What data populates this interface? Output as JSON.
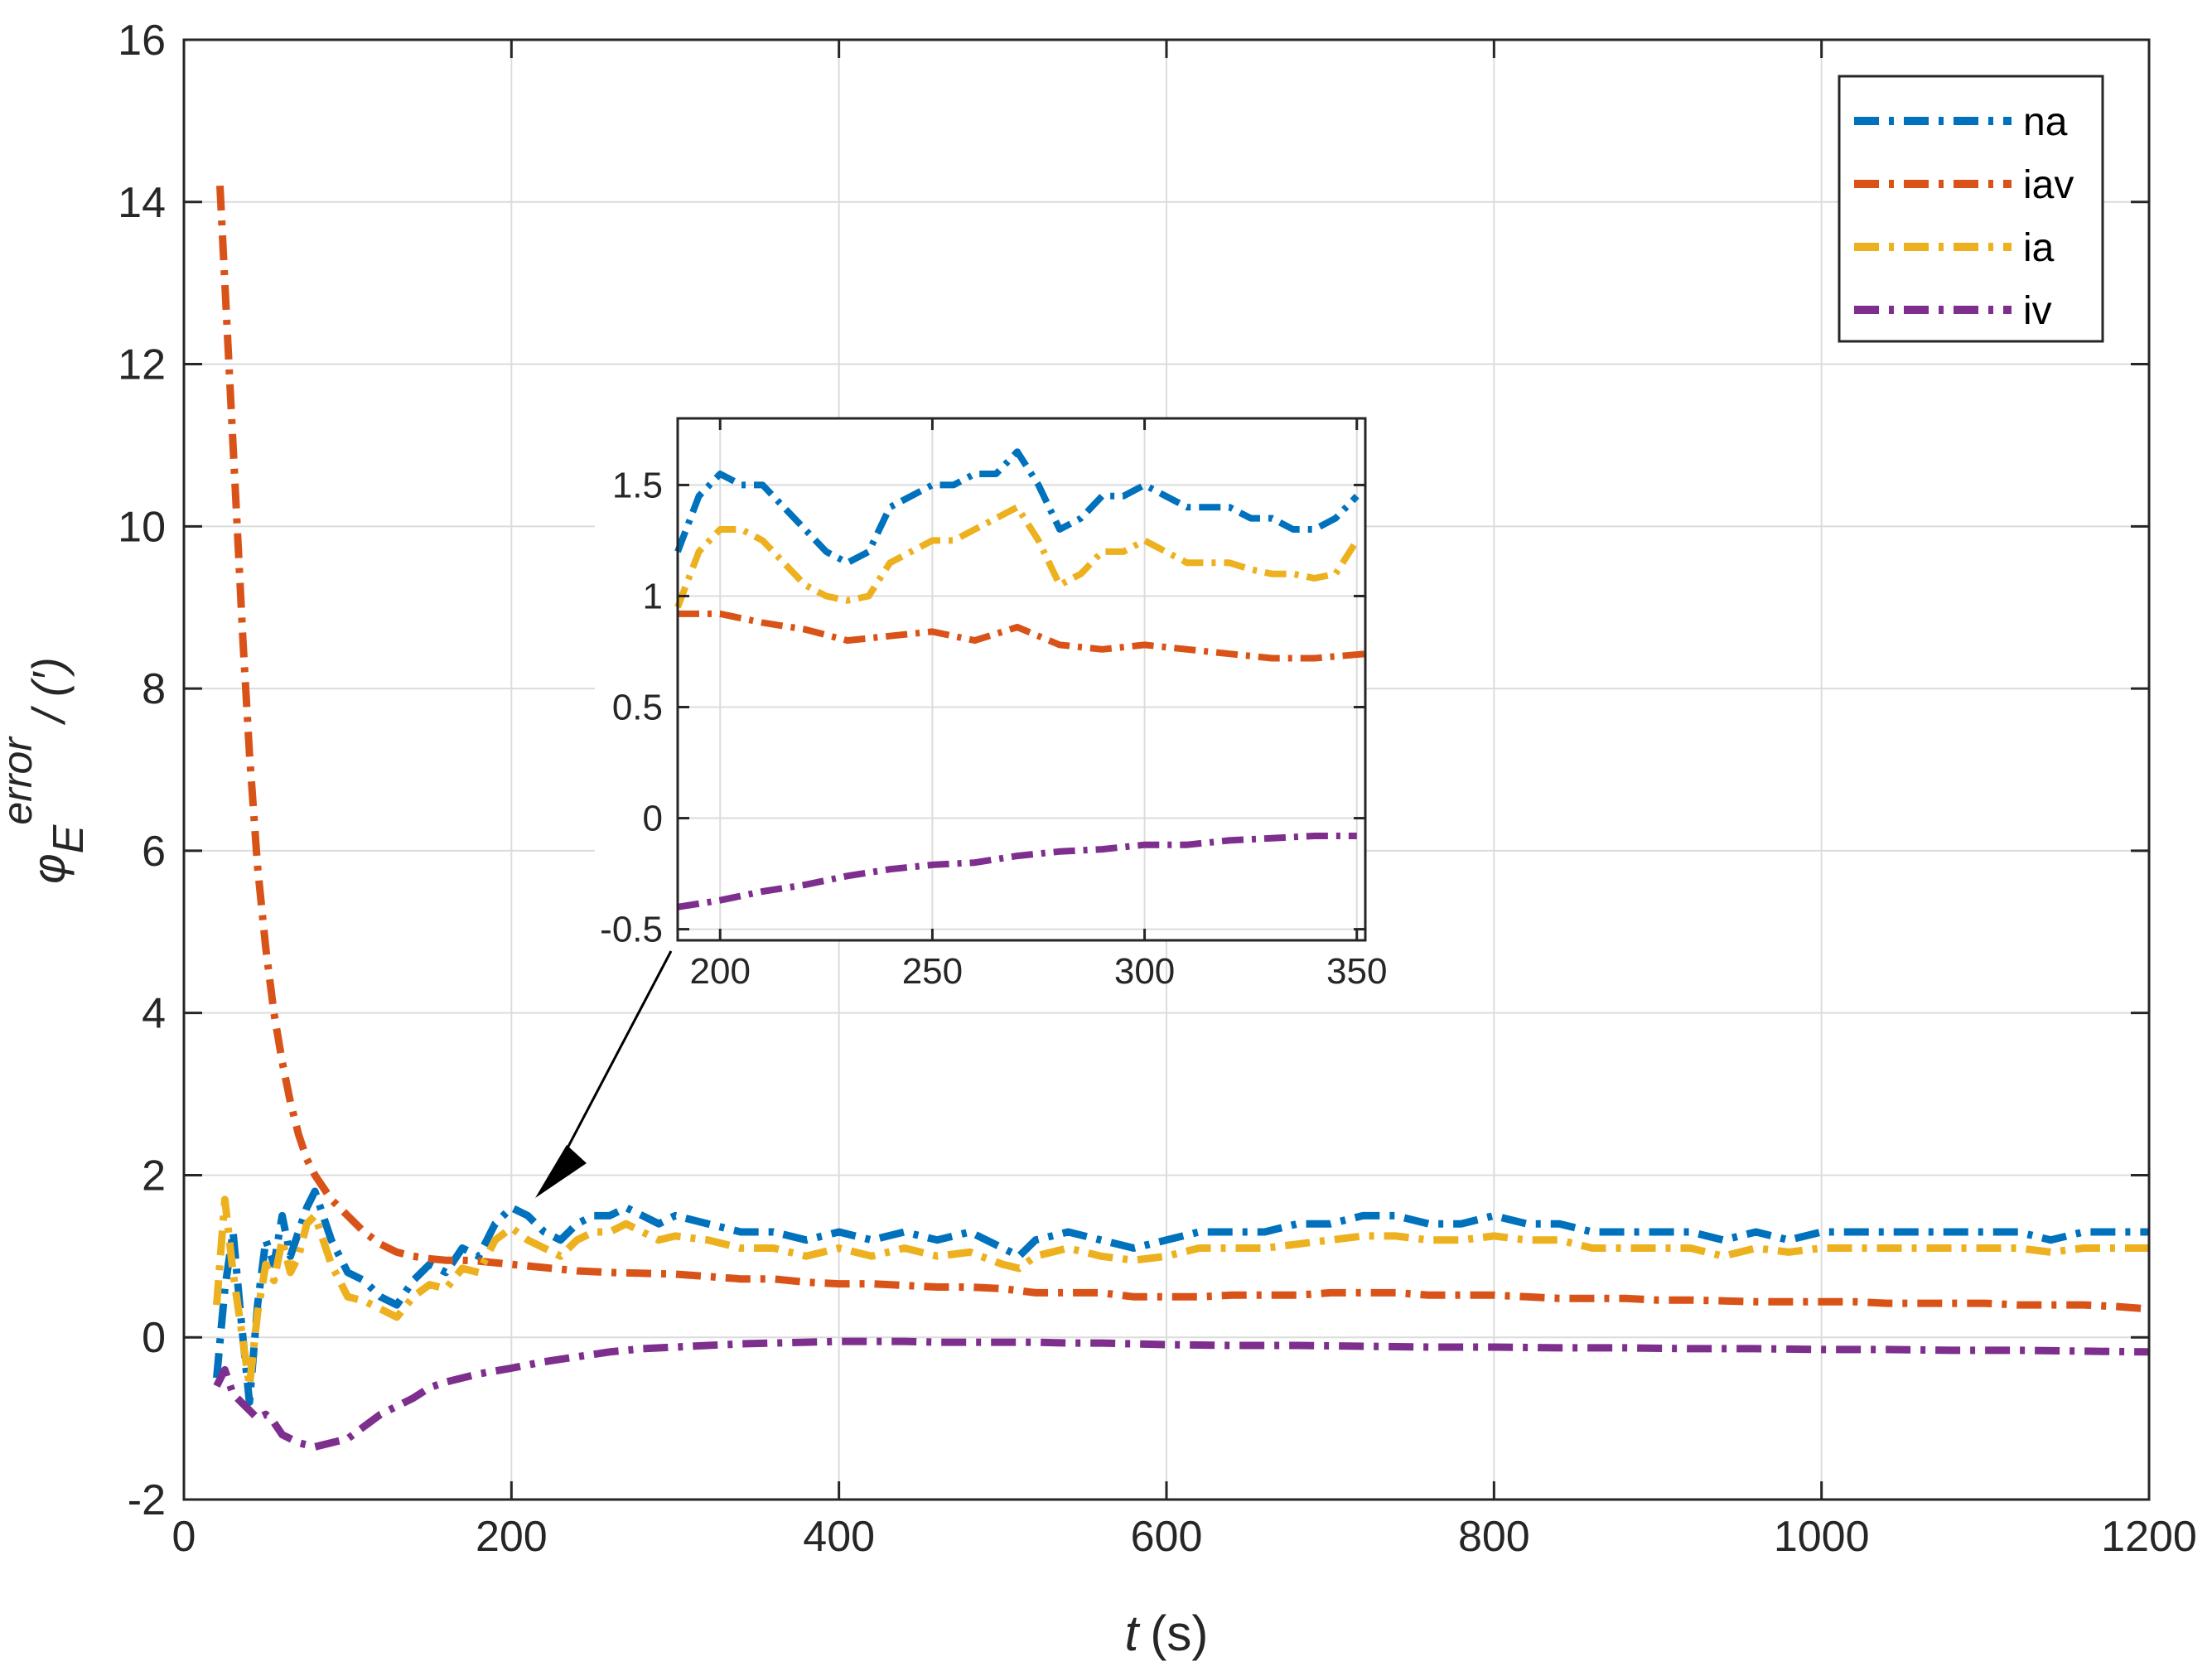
{
  "chart_data": [
    {
      "type": "line",
      "name": "main",
      "xlim": [
        0,
        1200
      ],
      "ylim": [
        -2,
        16
      ],
      "xticks": [
        "0",
        "200",
        "400",
        "600",
        "800",
        "1000",
        "1200"
      ],
      "yticks": [
        "-2",
        "0",
        "2",
        "4",
        "6",
        "8",
        "10",
        "12",
        "14",
        "16"
      ],
      "xlabel_var": "t",
      "xlabel_unit": "(s)",
      "ylabel_sym": "φ",
      "ylabel_sub": "E",
      "ylabel_sup": "error",
      "ylabel_unit": "/ (′)",
      "grid": true,
      "legend": {
        "position": "top-right",
        "entries": [
          "na",
          "iav",
          "ia",
          "iv"
        ]
      },
      "series": [
        {
          "name": "na",
          "color": "#0072BD",
          "x": [
            20,
            25,
            30,
            35,
            40,
            45,
            50,
            55,
            60,
            65,
            70,
            75,
            80,
            85,
            90,
            95,
            100,
            110,
            120,
            130,
            140,
            150,
            160,
            170,
            180,
            190,
            200,
            210,
            220,
            230,
            240,
            250,
            260,
            270,
            280,
            290,
            300,
            320,
            340,
            360,
            380,
            400,
            420,
            440,
            460,
            480,
            500,
            510,
            520,
            540,
            560,
            580,
            600,
            620,
            640,
            660,
            680,
            700,
            720,
            740,
            760,
            780,
            800,
            820,
            840,
            860,
            880,
            900,
            920,
            940,
            960,
            980,
            1000,
            1020,
            1040,
            1060,
            1080,
            1100,
            1120,
            1140,
            1160,
            1180,
            1200
          ],
          "y": [
            -0.5,
            0.6,
            1.3,
            0.2,
            -0.8,
            0.4,
            1.2,
            0.9,
            1.5,
            1.0,
            1.3,
            1.6,
            1.8,
            1.5,
            1.2,
            1.0,
            0.8,
            0.7,
            0.5,
            0.4,
            0.7,
            0.9,
            0.8,
            1.1,
            1.0,
            1.4,
            1.6,
            1.5,
            1.3,
            1.2,
            1.4,
            1.5,
            1.5,
            1.6,
            1.5,
            1.4,
            1.5,
            1.4,
            1.3,
            1.3,
            1.2,
            1.3,
            1.2,
            1.3,
            1.2,
            1.3,
            1.1,
            1.0,
            1.2,
            1.3,
            1.2,
            1.1,
            1.2,
            1.3,
            1.3,
            1.3,
            1.4,
            1.4,
            1.5,
            1.5,
            1.4,
            1.4,
            1.5,
            1.4,
            1.4,
            1.3,
            1.3,
            1.3,
            1.3,
            1.2,
            1.3,
            1.2,
            1.3,
            1.3,
            1.3,
            1.3,
            1.3,
            1.3,
            1.3,
            1.2,
            1.3,
            1.3,
            1.3
          ]
        },
        {
          "name": "iav",
          "color": "#D95319",
          "x": [
            22,
            25,
            28,
            32,
            36,
            40,
            45,
            50,
            55,
            60,
            65,
            70,
            75,
            80,
            90,
            100,
            110,
            120,
            130,
            140,
            150,
            160,
            170,
            180,
            190,
            200,
            220,
            240,
            260,
            280,
            300,
            320,
            340,
            360,
            380,
            400,
            420,
            440,
            460,
            480,
            500,
            520,
            540,
            560,
            580,
            600,
            620,
            640,
            660,
            680,
            700,
            720,
            740,
            760,
            780,
            800,
            820,
            840,
            860,
            880,
            900,
            920,
            940,
            960,
            980,
            1000,
            1020,
            1040,
            1060,
            1080,
            1100,
            1120,
            1140,
            1160,
            1180,
            1200
          ],
          "y": [
            14.2,
            13.0,
            11.8,
            10.2,
            8.6,
            7.2,
            5.8,
            4.8,
            4.0,
            3.4,
            2.9,
            2.5,
            2.2,
            2.0,
            1.7,
            1.5,
            1.3,
            1.15,
            1.05,
            1.0,
            0.97,
            0.95,
            0.95,
            0.94,
            0.92,
            0.9,
            0.86,
            0.82,
            0.8,
            0.79,
            0.78,
            0.75,
            0.72,
            0.72,
            0.68,
            0.66,
            0.66,
            0.64,
            0.62,
            0.62,
            0.6,
            0.55,
            0.55,
            0.55,
            0.5,
            0.5,
            0.5,
            0.52,
            0.52,
            0.52,
            0.55,
            0.55,
            0.55,
            0.52,
            0.52,
            0.52,
            0.5,
            0.48,
            0.48,
            0.48,
            0.46,
            0.46,
            0.45,
            0.44,
            0.44,
            0.44,
            0.44,
            0.42,
            0.42,
            0.42,
            0.42,
            0.4,
            0.4,
            0.4,
            0.38,
            0.35
          ]
        },
        {
          "name": "ia",
          "color": "#EDB120",
          "x": [
            20,
            25,
            30,
            35,
            40,
            45,
            50,
            55,
            60,
            65,
            70,
            75,
            80,
            85,
            90,
            95,
            100,
            110,
            120,
            130,
            140,
            150,
            160,
            170,
            180,
            190,
            200,
            210,
            220,
            230,
            240,
            250,
            260,
            270,
            280,
            290,
            300,
            320,
            340,
            360,
            380,
            400,
            420,
            440,
            460,
            480,
            500,
            510,
            520,
            540,
            560,
            580,
            600,
            620,
            640,
            660,
            680,
            700,
            720,
            740,
            760,
            780,
            800,
            820,
            840,
            860,
            880,
            900,
            920,
            940,
            960,
            980,
            1000,
            1020,
            1040,
            1060,
            1080,
            1100,
            1120,
            1140,
            1160,
            1180,
            1200
          ],
          "y": [
            0.4,
            1.7,
            0.8,
            0.1,
            -0.6,
            0.3,
            0.9,
            0.7,
            1.2,
            0.8,
            1.0,
            1.4,
            1.5,
            1.2,
            0.9,
            0.7,
            0.5,
            0.45,
            0.35,
            0.25,
            0.5,
            0.65,
            0.6,
            0.85,
            0.8,
            1.2,
            1.35,
            1.2,
            1.1,
            1.0,
            1.2,
            1.3,
            1.3,
            1.4,
            1.3,
            1.2,
            1.25,
            1.2,
            1.1,
            1.1,
            1.0,
            1.1,
            1.0,
            1.1,
            1.0,
            1.05,
            0.9,
            0.85,
            1.0,
            1.1,
            1.0,
            0.95,
            1.0,
            1.1,
            1.1,
            1.1,
            1.15,
            1.2,
            1.25,
            1.25,
            1.2,
            1.2,
            1.25,
            1.2,
            1.2,
            1.1,
            1.1,
            1.1,
            1.1,
            1.0,
            1.1,
            1.05,
            1.1,
            1.1,
            1.1,
            1.1,
            1.1,
            1.1,
            1.1,
            1.05,
            1.1,
            1.1,
            1.1
          ]
        },
        {
          "name": "iv",
          "color": "#7E2F8E",
          "x": [
            20,
            25,
            30,
            35,
            40,
            45,
            50,
            55,
            60,
            70,
            80,
            90,
            100,
            110,
            120,
            130,
            140,
            150,
            160,
            180,
            200,
            220,
            240,
            260,
            280,
            300,
            320,
            340,
            360,
            380,
            400,
            420,
            440,
            460,
            480,
            500,
            520,
            540,
            560,
            580,
            600,
            640,
            680,
            720,
            760,
            800,
            840,
            880,
            920,
            960,
            1000,
            1040,
            1080,
            1120,
            1160,
            1200
          ],
          "y": [
            -0.6,
            -0.4,
            -0.7,
            -0.8,
            -0.9,
            -1.0,
            -0.95,
            -1.05,
            -1.2,
            -1.3,
            -1.35,
            -1.3,
            -1.25,
            -1.1,
            -0.95,
            -0.85,
            -0.75,
            -0.62,
            -0.55,
            -0.45,
            -0.38,
            -0.3,
            -0.24,
            -0.18,
            -0.14,
            -0.12,
            -0.1,
            -0.08,
            -0.07,
            -0.06,
            -0.05,
            -0.05,
            -0.05,
            -0.06,
            -0.06,
            -0.06,
            -0.06,
            -0.07,
            -0.07,
            -0.08,
            -0.09,
            -0.1,
            -0.1,
            -0.11,
            -0.12,
            -0.12,
            -0.13,
            -0.13,
            -0.14,
            -0.14,
            -0.15,
            -0.15,
            -0.16,
            -0.16,
            -0.17,
            -0.18
          ]
        }
      ]
    },
    {
      "type": "line",
      "name": "inset",
      "xlim": [
        190,
        352
      ],
      "ylim": [
        -0.55,
        1.8
      ],
      "xticks": [
        "200",
        "250",
        "300",
        "350"
      ],
      "yticks": [
        "-0.5",
        "0",
        "0.5",
        "1",
        "1.5"
      ],
      "grid": true,
      "annotation": "arrow pointing from inset to t ≈ 200 s on main plot",
      "series": [
        {
          "name": "na",
          "color": "#0072BD",
          "x": [
            190,
            195,
            200,
            205,
            210,
            215,
            220,
            225,
            230,
            235,
            240,
            245,
            250,
            255,
            260,
            265,
            270,
            275,
            280,
            285,
            290,
            295,
            300,
            305,
            310,
            315,
            320,
            325,
            330,
            335,
            340,
            345,
            350
          ],
          "y": [
            1.2,
            1.45,
            1.55,
            1.5,
            1.5,
            1.4,
            1.3,
            1.2,
            1.15,
            1.2,
            1.4,
            1.45,
            1.5,
            1.5,
            1.55,
            1.55,
            1.65,
            1.5,
            1.3,
            1.35,
            1.45,
            1.45,
            1.5,
            1.45,
            1.4,
            1.4,
            1.4,
            1.35,
            1.35,
            1.3,
            1.3,
            1.35,
            1.45
          ]
        },
        {
          "name": "iav",
          "color": "#D95319",
          "x": [
            190,
            200,
            210,
            220,
            230,
            240,
            250,
            260,
            270,
            280,
            290,
            300,
            310,
            320,
            330,
            340,
            352
          ],
          "y": [
            0.92,
            0.92,
            0.88,
            0.85,
            0.8,
            0.82,
            0.84,
            0.8,
            0.86,
            0.78,
            0.76,
            0.78,
            0.76,
            0.74,
            0.72,
            0.72,
            0.74
          ]
        },
        {
          "name": "ia",
          "color": "#EDB120",
          "x": [
            190,
            195,
            200,
            205,
            210,
            215,
            220,
            225,
            230,
            235,
            240,
            245,
            250,
            255,
            260,
            265,
            270,
            275,
            280,
            285,
            290,
            295,
            300,
            305,
            310,
            315,
            320,
            325,
            330,
            335,
            340,
            345,
            350
          ],
          "y": [
            0.95,
            1.2,
            1.3,
            1.3,
            1.25,
            1.15,
            1.05,
            1.0,
            0.98,
            1.0,
            1.15,
            1.2,
            1.25,
            1.25,
            1.3,
            1.35,
            1.4,
            1.25,
            1.05,
            1.1,
            1.2,
            1.2,
            1.25,
            1.2,
            1.15,
            1.15,
            1.15,
            1.12,
            1.1,
            1.1,
            1.08,
            1.1,
            1.25
          ]
        },
        {
          "name": "iv",
          "color": "#7E2F8E",
          "x": [
            190,
            200,
            210,
            220,
            230,
            240,
            250,
            260,
            270,
            280,
            290,
            300,
            310,
            320,
            330,
            340,
            350
          ],
          "y": [
            -0.4,
            -0.37,
            -0.33,
            -0.3,
            -0.26,
            -0.23,
            -0.21,
            -0.2,
            -0.17,
            -0.15,
            -0.14,
            -0.12,
            -0.12,
            -0.1,
            -0.09,
            -0.08,
            -0.08
          ]
        }
      ]
    }
  ]
}
